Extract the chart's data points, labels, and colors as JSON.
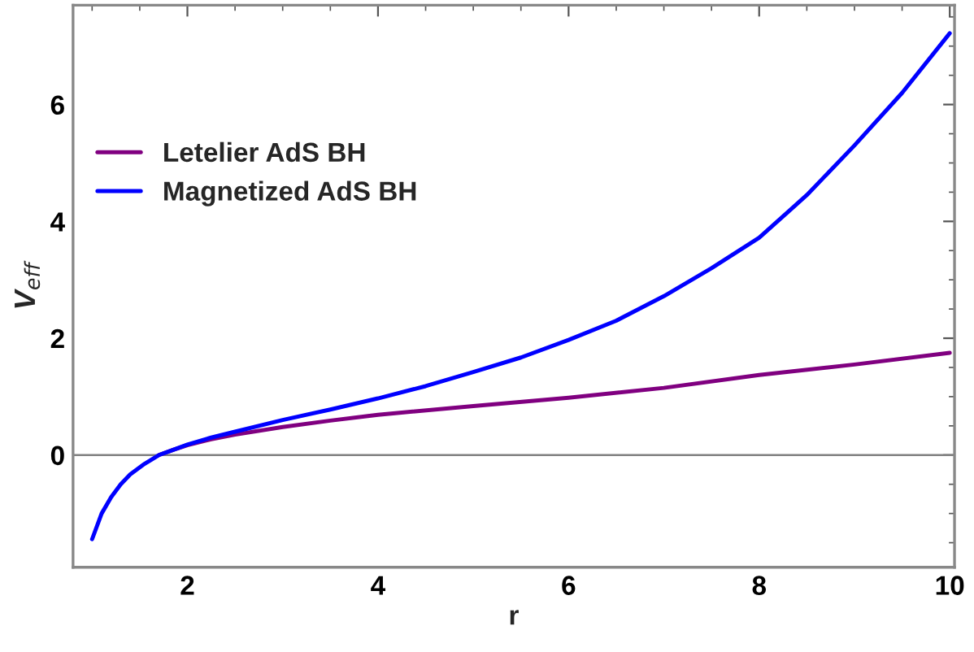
{
  "chart_data": {
    "type": "line",
    "xlabel": "r",
    "ylabel": "V$_{eff}$",
    "xlim": [
      0.8,
      10.05
    ],
    "ylim": [
      -1.92,
      7.7
    ],
    "xticks": [
      2,
      4,
      6,
      8,
      10
    ],
    "yticks": [
      0,
      2,
      4,
      6
    ],
    "grid": false,
    "legend": "top left",
    "marker": "none",
    "line_style": "solid",
    "ref_lines": [
      {
        "axis": "y",
        "value": 0,
        "color": "#808080"
      }
    ],
    "series": [
      {
        "name": "Letelier AdS BH",
        "color": "#800080",
        "x": [
          1.7,
          1.85,
          2,
          2.25,
          2.5,
          3,
          3.5,
          4,
          5,
          6,
          7,
          8,
          9,
          10
        ],
        "values": [
          0,
          0.09,
          0.17,
          0.27,
          0.35,
          0.48,
          0.59,
          0.69,
          0.84,
          0.98,
          1.15,
          1.37,
          1.55,
          1.75
        ]
      },
      {
        "name": "Magnetized AdS BH",
        "color": "#0000ff",
        "x": [
          1,
          1.1,
          1.2,
          1.3,
          1.4,
          1.55,
          1.7,
          1.85,
          2,
          2.25,
          2.5,
          3,
          3.5,
          4,
          4.5,
          5,
          5.5,
          6,
          6.5,
          7,
          7.5,
          8,
          8.5,
          9,
          9.5,
          10
        ],
        "values": [
          -1.44,
          -1.0,
          -0.72,
          -0.5,
          -0.33,
          -0.15,
          0,
          0.09,
          0.18,
          0.3,
          0.4,
          0.6,
          0.78,
          0.97,
          1.18,
          1.42,
          1.67,
          1.97,
          2.3,
          2.72,
          3.2,
          3.72,
          4.45,
          5.3,
          6.2,
          7.22
        ]
      }
    ]
  }
}
